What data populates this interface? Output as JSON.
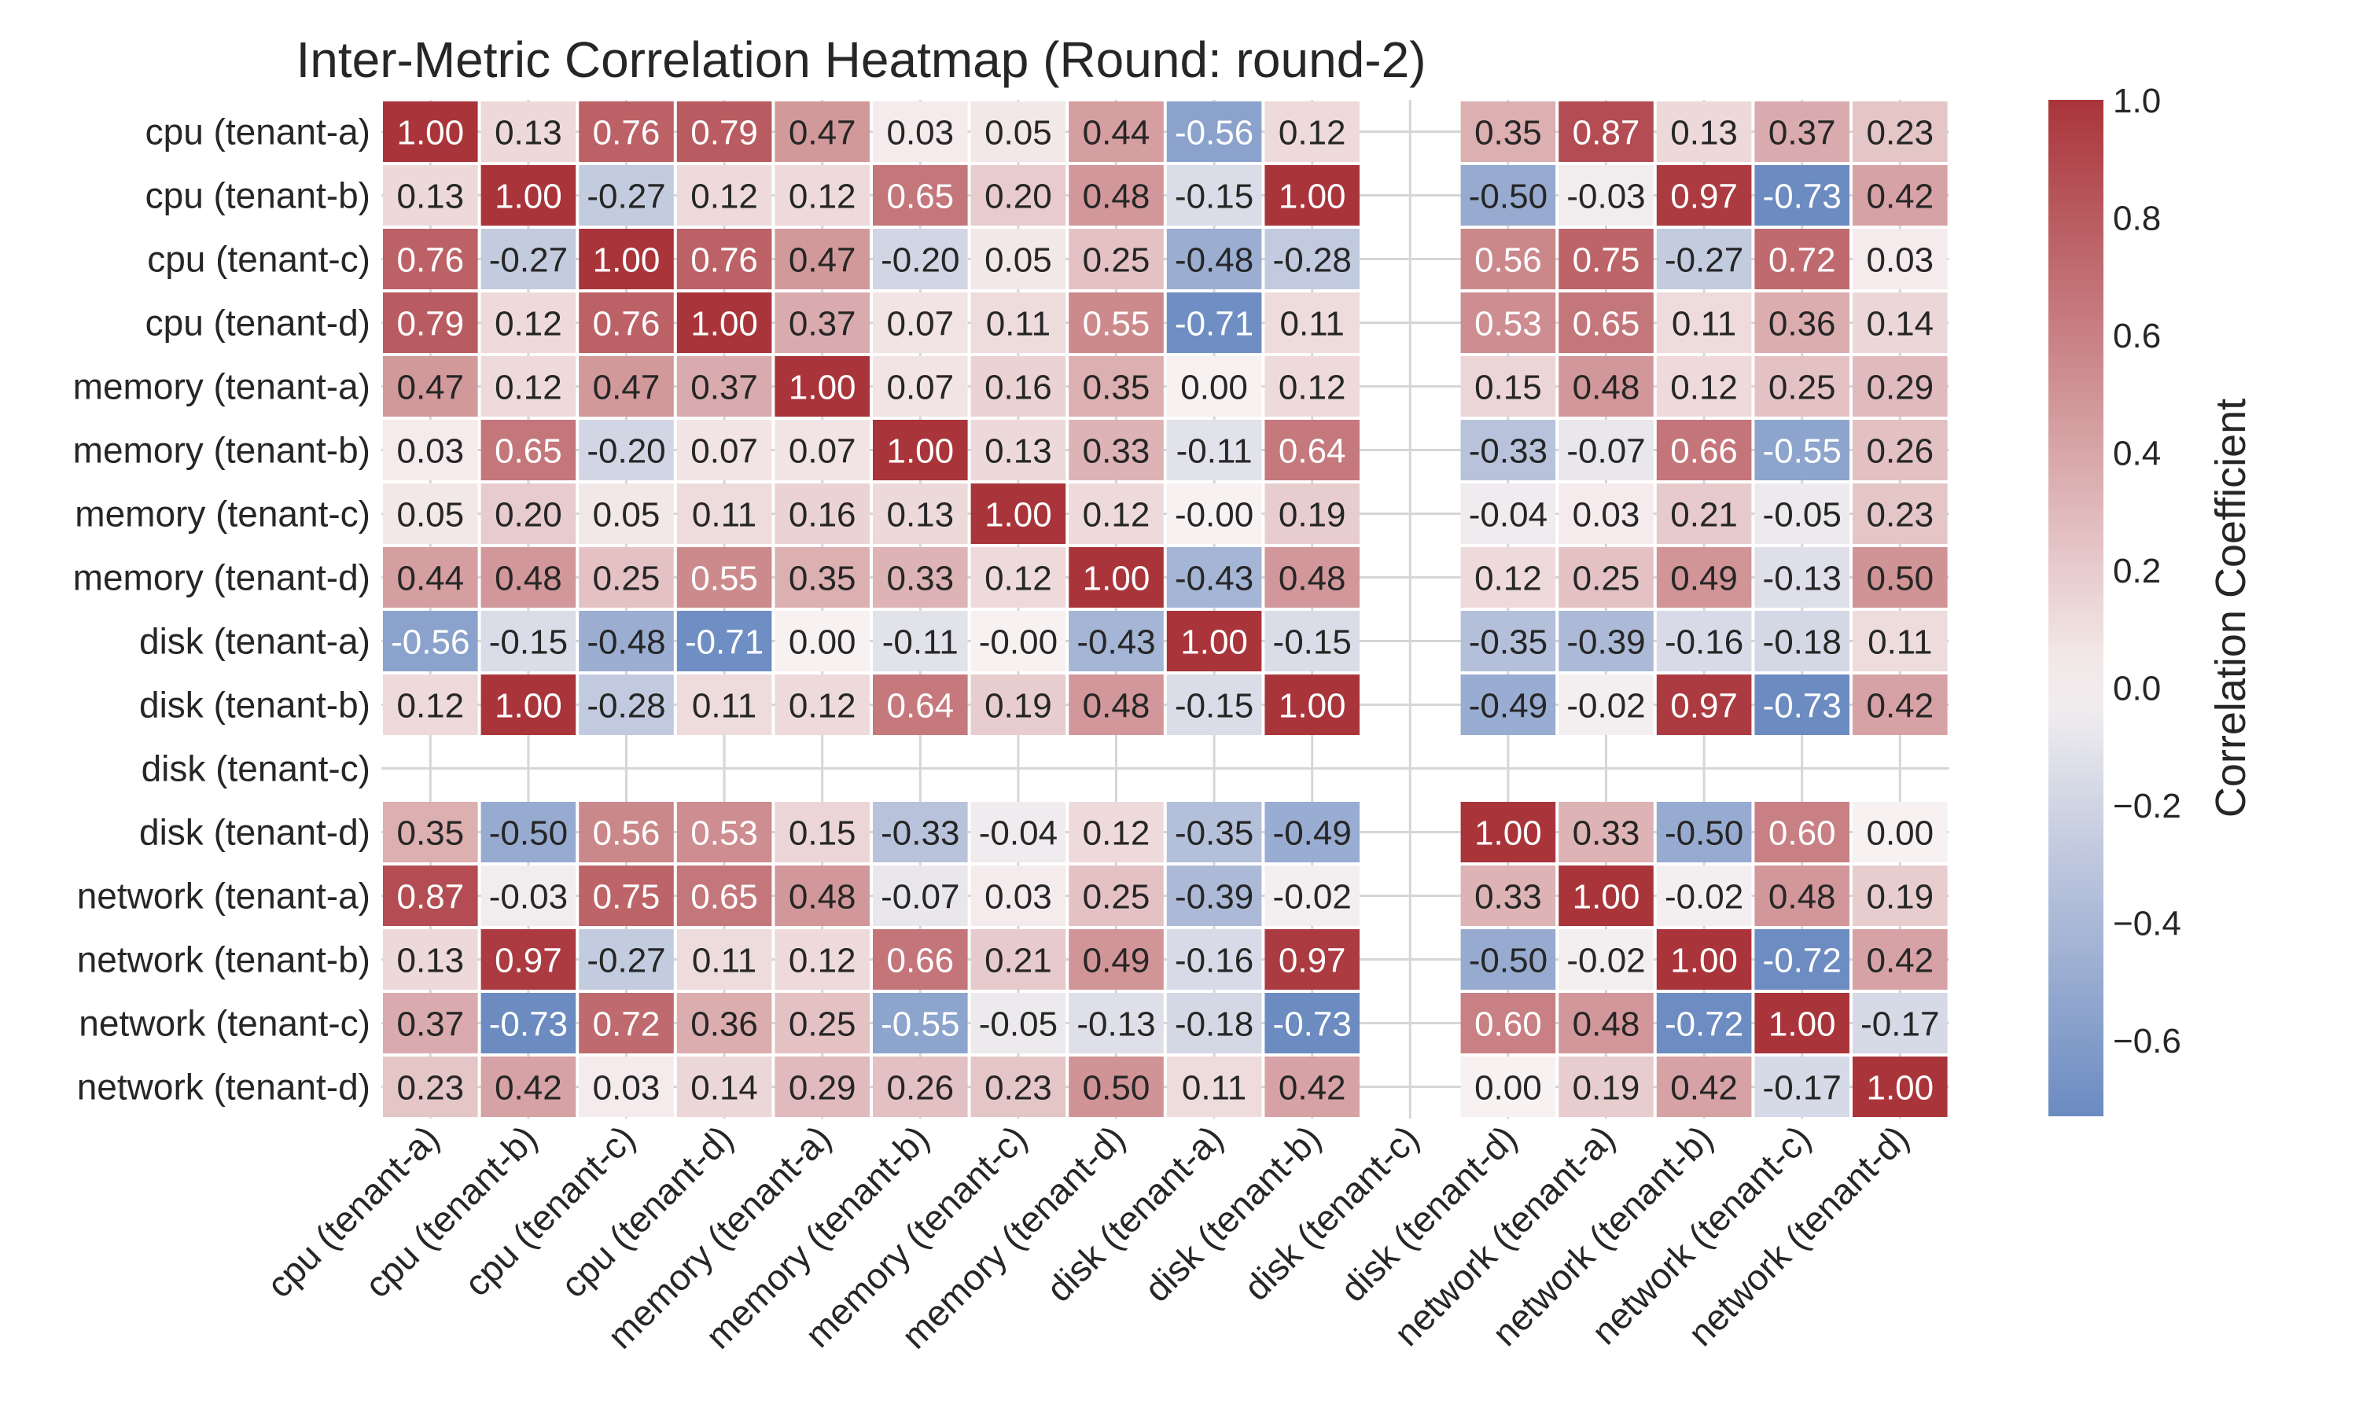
{
  "chart_data": {
    "type": "heatmap",
    "title": "Inter-Metric Correlation Heatmap (Round: round-2)",
    "labels": [
      "cpu (tenant-a)",
      "cpu (tenant-b)",
      "cpu (tenant-c)",
      "cpu (tenant-d)",
      "memory (tenant-a)",
      "memory (tenant-b)",
      "memory (tenant-c)",
      "memory (tenant-d)",
      "disk (tenant-a)",
      "disk (tenant-b)",
      "disk (tenant-c)",
      "disk (tenant-d)",
      "network (tenant-a)",
      "network (tenant-b)",
      "network (tenant-c)",
      "network (tenant-d)"
    ],
    "values": [
      [
        1.0,
        0.13,
        0.76,
        0.79,
        0.47,
        0.03,
        0.05,
        0.44,
        -0.56,
        0.12,
        null,
        0.35,
        0.87,
        0.13,
        0.37,
        0.23
      ],
      [
        0.13,
        1.0,
        -0.27,
        0.12,
        0.12,
        0.65,
        0.2,
        0.48,
        -0.15,
        1.0,
        null,
        -0.5,
        -0.03,
        0.97,
        -0.73,
        0.42
      ],
      [
        0.76,
        -0.27,
        1.0,
        0.76,
        0.47,
        -0.2,
        0.05,
        0.25,
        -0.48,
        -0.28,
        null,
        0.56,
        0.75,
        -0.27,
        0.72,
        0.03
      ],
      [
        0.79,
        0.12,
        0.76,
        1.0,
        0.37,
        0.07,
        0.11,
        0.55,
        -0.71,
        0.11,
        null,
        0.53,
        0.65,
        0.11,
        0.36,
        0.14
      ],
      [
        0.47,
        0.12,
        0.47,
        0.37,
        1.0,
        0.07,
        0.16,
        0.35,
        0.0,
        0.12,
        null,
        0.15,
        0.48,
        0.12,
        0.25,
        0.29
      ],
      [
        0.03,
        0.65,
        -0.2,
        0.07,
        0.07,
        1.0,
        0.13,
        0.33,
        -0.11,
        0.64,
        null,
        -0.33,
        -0.07,
        0.66,
        -0.55,
        0.26
      ],
      [
        0.05,
        0.2,
        0.05,
        0.11,
        0.16,
        0.13,
        1.0,
        0.12,
        -0.0,
        0.19,
        null,
        -0.04,
        0.03,
        0.21,
        -0.05,
        0.23
      ],
      [
        0.44,
        0.48,
        0.25,
        0.55,
        0.35,
        0.33,
        0.12,
        1.0,
        -0.43,
        0.48,
        null,
        0.12,
        0.25,
        0.49,
        -0.13,
        0.5
      ],
      [
        -0.56,
        -0.15,
        -0.48,
        -0.71,
        0.0,
        -0.11,
        -0.0,
        -0.43,
        1.0,
        -0.15,
        null,
        -0.35,
        -0.39,
        -0.16,
        -0.18,
        0.11
      ],
      [
        0.12,
        1.0,
        -0.28,
        0.11,
        0.12,
        0.64,
        0.19,
        0.48,
        -0.15,
        1.0,
        null,
        -0.49,
        -0.02,
        0.97,
        -0.73,
        0.42
      ],
      [
        null,
        null,
        null,
        null,
        null,
        null,
        null,
        null,
        null,
        null,
        null,
        null,
        null,
        null,
        null,
        null
      ],
      [
        0.35,
        -0.5,
        0.56,
        0.53,
        0.15,
        -0.33,
        -0.04,
        0.12,
        -0.35,
        -0.49,
        null,
        1.0,
        0.33,
        -0.5,
        0.6,
        0.0
      ],
      [
        0.87,
        -0.03,
        0.75,
        0.65,
        0.48,
        -0.07,
        0.03,
        0.25,
        -0.39,
        -0.02,
        null,
        0.33,
        1.0,
        -0.02,
        0.48,
        0.19
      ],
      [
        0.13,
        0.97,
        -0.27,
        0.11,
        0.12,
        0.66,
        0.21,
        0.49,
        -0.16,
        0.97,
        null,
        -0.5,
        -0.02,
        1.0,
        -0.72,
        0.42
      ],
      [
        0.37,
        -0.73,
        0.72,
        0.36,
        0.25,
        -0.55,
        -0.05,
        -0.13,
        -0.18,
        -0.73,
        null,
        0.6,
        0.48,
        -0.72,
        1.0,
        -0.17
      ],
      [
        0.23,
        0.42,
        0.03,
        0.14,
        0.29,
        0.26,
        0.23,
        0.5,
        0.11,
        0.42,
        null,
        0.0,
        0.19,
        0.42,
        -0.17,
        1.0
      ]
    ],
    "colorbar": {
      "label": "Correlation Coefficient",
      "range": [
        -0.73,
        1.0
      ],
      "ticks": [
        1.0,
        0.8,
        0.6,
        0.4,
        0.2,
        0.0,
        -0.2,
        -0.4,
        -0.6
      ],
      "tick_labels": [
        "1.0",
        "0.8",
        "0.6",
        "0.4",
        "0.2",
        "0.0",
        "−0.2",
        "−0.4",
        "−0.6"
      ]
    },
    "colormap": {
      "negative": "#6788c0",
      "neutral": "#f7f1f1",
      "positive": "#a9353b"
    },
    "grid": true
  }
}
